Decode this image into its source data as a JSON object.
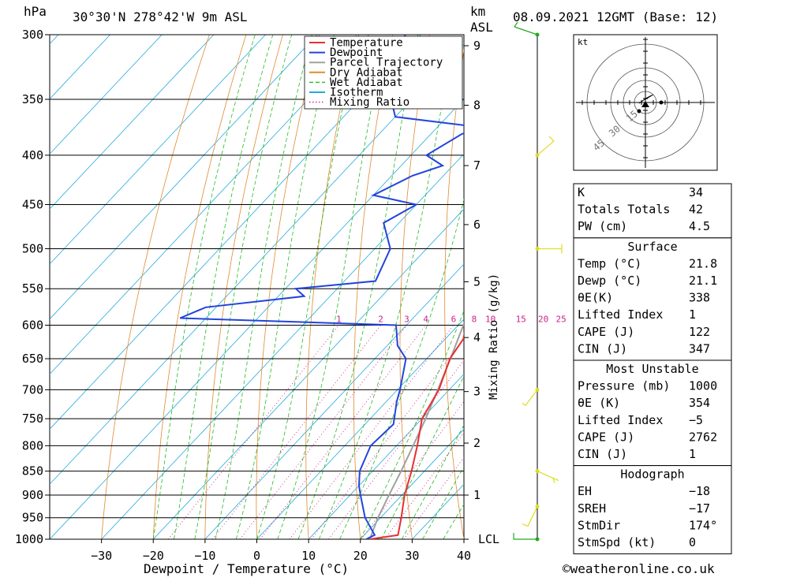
{
  "header": {
    "unit_left": "hPa",
    "location": "30°30'N 278°42'W 9m ASL",
    "unit_right_km": "km",
    "unit_right_asl": "ASL",
    "datetime": "08.09.2021 12GMT (Base: 12)"
  },
  "footer": {
    "credit": "©weatheronline.co.uk"
  },
  "legend": {
    "items": [
      {
        "label": "Temperature",
        "color": "#e53030",
        "style": "solid"
      },
      {
        "label": "Dewpoint",
        "color": "#2244dd",
        "style": "solid"
      },
      {
        "label": "Parcel Trajectory",
        "color": "#a0a0a0",
        "style": "solid"
      },
      {
        "label": "Dry Adiabat",
        "color": "#e08a30",
        "style": "solid"
      },
      {
        "label": "Wet Adiabat",
        "color": "#22bb22",
        "style": "dashed"
      },
      {
        "label": "Isotherm",
        "color": "#22aadd",
        "style": "solid"
      },
      {
        "label": "Mixing Ratio",
        "color": "#cc2288",
        "style": "dotted"
      }
    ]
  },
  "chart_data": {
    "type": "line",
    "subtype": "skew-T log-p sounding",
    "xlabel": "Dewpoint / Temperature (°C)",
    "ylabel_right": "Mixing Ratio (g/kg)",
    "y_scale": "log",
    "xlim": [
      -40,
      40
    ],
    "ylim": [
      1000,
      300
    ],
    "x_ticks": [
      "−30",
      "−20",
      "−10",
      "0",
      "10",
      "20",
      "30",
      "40"
    ],
    "x_tick_values": [
      -30,
      -20,
      -10,
      0,
      10,
      20,
      30,
      40
    ],
    "pressure_levels": [
      300,
      350,
      400,
      450,
      500,
      550,
      600,
      650,
      700,
      750,
      800,
      850,
      900,
      950,
      1000
    ],
    "pressure_labels": [
      "300",
      "350",
      "400",
      "450",
      "500",
      "550",
      "600",
      "650",
      "700",
      "750",
      "800",
      "850",
      "900",
      "950",
      "1000"
    ],
    "km_ticks": [
      {
        "label": "LCL",
        "p": 1000
      },
      {
        "label": "1",
        "p": 900
      },
      {
        "label": "2",
        "p": 795
      },
      {
        "label": "3",
        "p": 703
      },
      {
        "label": "4",
        "p": 618
      },
      {
        "label": "5",
        "p": 541
      },
      {
        "label": "6",
        "p": 472
      },
      {
        "label": "7",
        "p": 410
      },
      {
        "label": "8",
        "p": 355
      },
      {
        "label": "9",
        "p": 308
      }
    ],
    "mixing_ratio_labels": [
      "1",
      "2",
      "3",
      "4",
      "6",
      "8",
      "10",
      "15",
      "20",
      "25"
    ],
    "mixing_ratio_values": [
      1,
      2,
      3,
      4,
      6,
      8,
      10,
      15,
      20,
      25
    ],
    "mixing_ratio_label_level": 600,
    "series": [
      {
        "name": "Temperature",
        "color": "#e53030",
        "points": [
          [
            1000,
            21.8
          ],
          [
            990,
            26.5
          ],
          [
            950,
            24.0
          ],
          [
            900,
            20.5
          ],
          [
            850,
            17.5
          ],
          [
            800,
            14.0
          ],
          [
            750,
            10.0
          ],
          [
            700,
            8.0
          ],
          [
            650,
            4.5
          ],
          [
            620,
            3.5
          ],
          [
            600,
            1.5
          ],
          [
            550,
            -3.0
          ],
          [
            500,
            -8.0
          ],
          [
            450,
            -14.0
          ],
          [
            400,
            -21.5
          ],
          [
            370,
            -27.0
          ],
          [
            360,
            -28.0
          ],
          [
            340,
            -31.5
          ],
          [
            320,
            -35.5
          ],
          [
            300,
            -40.0
          ]
        ]
      },
      {
        "name": "Dewpoint",
        "color": "#2244dd",
        "points": [
          [
            1000,
            21.1
          ],
          [
            990,
            22.0
          ],
          [
            950,
            17.0
          ],
          [
            900,
            12.0
          ],
          [
            880,
            10.0
          ],
          [
            850,
            7.5
          ],
          [
            800,
            5.0
          ],
          [
            760,
            5.5
          ],
          [
            720,
            2.0
          ],
          [
            700,
            0.5
          ],
          [
            650,
            -4.0
          ],
          [
            630,
            -8.0
          ],
          [
            600,
            -12.0
          ],
          [
            590,
            -55.0
          ],
          [
            575,
            -52.0
          ],
          [
            560,
            -35.0
          ],
          [
            550,
            -38.0
          ],
          [
            540,
            -24.0
          ],
          [
            500,
            -27.0
          ],
          [
            470,
            -33.0
          ],
          [
            450,
            -30.0
          ],
          [
            440,
            -40.0
          ],
          [
            420,
            -36.0
          ],
          [
            410,
            -32.0
          ],
          [
            400,
            -37.0
          ],
          [
            380,
            -34.0
          ],
          [
            375,
            -30.0
          ],
          [
            365,
            -50.0
          ],
          [
            350,
            -54.0
          ],
          [
            320,
            -60.0
          ],
          [
            300,
            -63.0
          ]
        ]
      },
      {
        "name": "Parcel Trajectory",
        "color": "#a0a0a0",
        "points": [
          [
            1000,
            21.8
          ],
          [
            950,
            19.5
          ],
          [
            900,
            17.5
          ],
          [
            850,
            15.5
          ],
          [
            800,
            13.2
          ],
          [
            750,
            10.7
          ],
          [
            700,
            7.8
          ],
          [
            650,
            4.6
          ],
          [
            600,
            1.0
          ],
          [
            550,
            -3.0
          ],
          [
            500,
            -7.8
          ],
          [
            450,
            -13.0
          ],
          [
            400,
            -19.5
          ],
          [
            350,
            -27.5
          ],
          [
            300,
            -37.0
          ]
        ]
      }
    ]
  },
  "stats": {
    "rows_top": [
      {
        "label": "K",
        "value": "34"
      },
      {
        "label": "Totals Totals",
        "value": "42"
      },
      {
        "label": "PW (cm)",
        "value": "4.5"
      }
    ],
    "surface": {
      "title": "Surface",
      "rows": [
        {
          "label": "Temp (°C)",
          "value": "21.8"
        },
        {
          "label": "Dewp (°C)",
          "value": "21.1"
        },
        {
          "label": "θE(K)",
          "value": "338"
        },
        {
          "label": "Lifted Index",
          "value": "1"
        },
        {
          "label": "CAPE (J)",
          "value": "122"
        },
        {
          "label": "CIN (J)",
          "value": "347"
        }
      ]
    },
    "most_unstable": {
      "title": "Most Unstable",
      "rows": [
        {
          "label": "Pressure (mb)",
          "value": "1000"
        },
        {
          "label": "θE (K)",
          "value": "354"
        },
        {
          "label": "Lifted Index",
          "value": "−5"
        },
        {
          "label": "CAPE (J)",
          "value": "2762"
        },
        {
          "label": "CIN (J)",
          "value": "1"
        }
      ]
    },
    "hodograph": {
      "title": "Hodograph",
      "rows": [
        {
          "label": "EH",
          "value": "−18"
        },
        {
          "label": "SREH",
          "value": "−17"
        },
        {
          "label": "StmDir",
          "value": "174°"
        },
        {
          "label": "StmSpd (kt)",
          "value": "0"
        }
      ]
    }
  },
  "hodograph_plot": {
    "unit": "kt",
    "ring_labels": [
      "15",
      "30",
      "45"
    ]
  },
  "wind_barbs": {
    "levels": [
      {
        "p": 300,
        "color": "#22aa22"
      },
      {
        "p": 400,
        "color": "#dddd22"
      },
      {
        "p": 500,
        "color": "#dddd22"
      },
      {
        "p": 700,
        "color": "#dddd22"
      },
      {
        "p": 850,
        "color": "#dddd22"
      },
      {
        "p": 925,
        "color": "#dddd22"
      },
      {
        "p": 1000,
        "color": "#22aa22"
      }
    ]
  }
}
